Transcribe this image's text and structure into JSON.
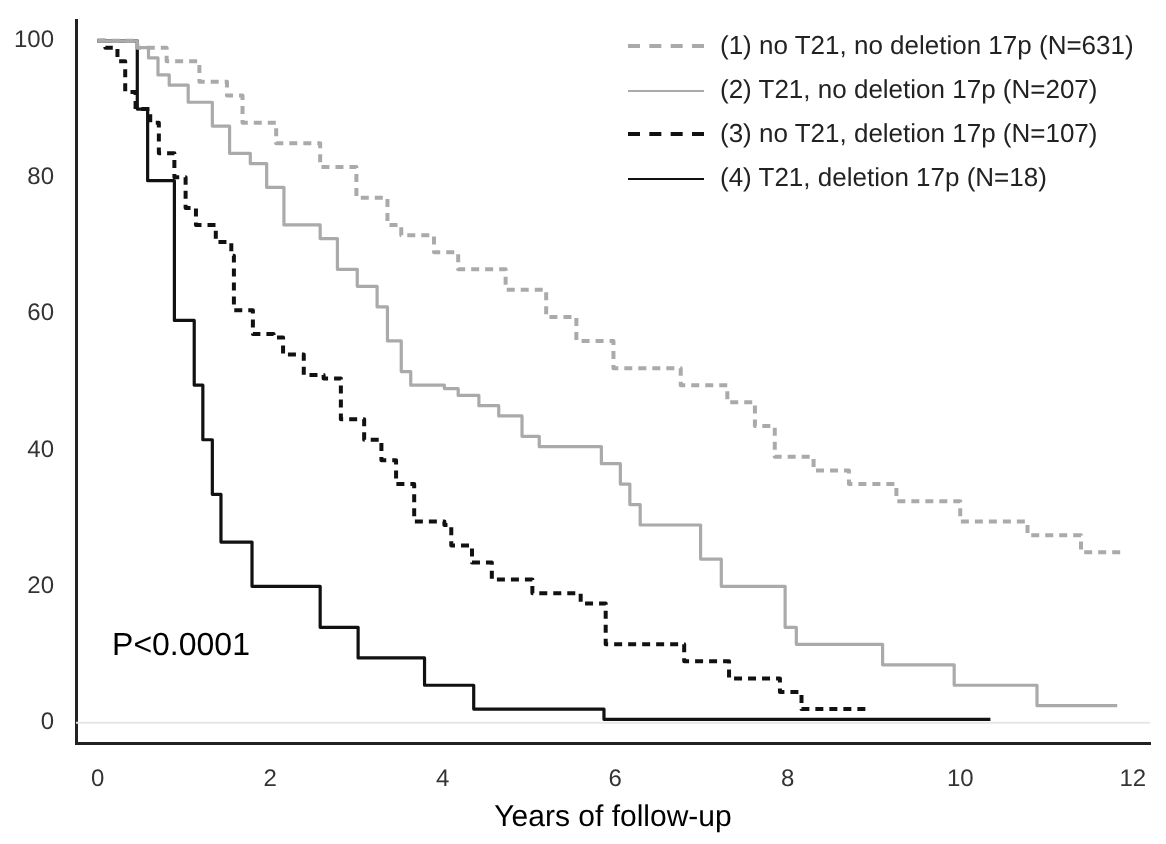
{
  "chart_data": {
    "type": "step",
    "xlabel": "Years of follow-up",
    "xlim": [
      -0.25,
      12.2
    ],
    "xticks": [
      0,
      2,
      4,
      6,
      8,
      10,
      12
    ],
    "ylim": [
      -3,
      103
    ],
    "yticks": [
      0,
      20,
      40,
      60,
      80,
      100
    ],
    "grid": false,
    "legend": "top right",
    "marker": "none",
    "ref_lines": [
      {
        "axis": "y",
        "value": 0,
        "color": "#e6e6e6"
      }
    ],
    "annotations": [
      "P<0.0001"
    ],
    "series": [
      {
        "name": "(1) no T21, no deletion 17p (N=631)",
        "color": "#aaaaaa",
        "line_style": "dashed",
        "x": [
          0,
          0.46,
          0.8,
          1.18,
          1.5,
          1.68,
          2.07,
          2.58,
          3.0,
          3.36,
          3.52,
          3.9,
          4.18,
          4.73,
          5.2,
          5.55,
          5.98,
          6.76,
          7.3,
          7.62,
          7.85,
          8.3,
          8.71,
          9.26,
          10.0,
          10.78,
          11.4,
          11.9
        ],
        "values": [
          100,
          99,
          97,
          94,
          92,
          88,
          85,
          81.5,
          77,
          73,
          71.5,
          69,
          66.5,
          63.5,
          59.5,
          56,
          52,
          49.5,
          47,
          43.5,
          39,
          37,
          35,
          32.5,
          29.5,
          27.5,
          25,
          25
        ]
      },
      {
        "name": "(2) T21, no deletion 17p (N=207)",
        "color": "#aaaaaa",
        "line_style": "solid",
        "x": [
          0,
          0.46,
          0.59,
          0.7,
          0.83,
          1.05,
          1.33,
          1.53,
          1.77,
          1.96,
          2.16,
          2.58,
          2.78,
          3.01,
          3.24,
          3.36,
          3.52,
          3.63,
          4.02,
          4.18,
          4.42,
          4.65,
          4.92,
          5.12,
          5.84,
          6.06,
          6.17,
          6.29,
          6.99,
          7.23,
          7.97,
          8.1,
          9.1,
          9.93,
          10.89,
          11.82
        ],
        "values": [
          100,
          99,
          97.5,
          95,
          93.5,
          91,
          87.5,
          83.5,
          82,
          78.5,
          73,
          71,
          66.5,
          64,
          61,
          56,
          51.5,
          49.5,
          49,
          48,
          46.5,
          45,
          42,
          40.5,
          38,
          35,
          32,
          29,
          24,
          20,
          14,
          11.5,
          8.5,
          5.5,
          2.5,
          2.5
        ]
      },
      {
        "name": "(3) no T21, deletion 17p (N=107)",
        "color": "#111111",
        "line_style": "dashed",
        "x": [
          0,
          0.09,
          0.23,
          0.32,
          0.44,
          0.61,
          0.71,
          0.89,
          1.02,
          1.14,
          1.37,
          1.55,
          1.58,
          1.8,
          2.04,
          2.15,
          2.39,
          2.62,
          2.82,
          3.09,
          3.29,
          3.46,
          3.67,
          4.02,
          4.1,
          4.34,
          4.57,
          5.04,
          5.6,
          5.89,
          6.8,
          7.32,
          7.91,
          8.16,
          8.94
        ],
        "values": [
          100,
          99,
          97,
          92.5,
          90,
          88,
          83.5,
          80,
          75.5,
          73,
          70.5,
          68.5,
          60.5,
          57,
          56.5,
          54,
          51,
          50.5,
          44.5,
          41.5,
          38.5,
          35,
          29.5,
          29,
          26,
          23.5,
          21,
          19,
          17.5,
          11.5,
          9,
          6.5,
          4.5,
          2,
          2
        ]
      },
      {
        "name": "(4) T21, deletion 17p (N=18)",
        "color": "#111111",
        "line_style": "solid",
        "x": [
          0,
          0.46,
          0.58,
          0.89,
          1.12,
          1.22,
          1.33,
          1.43,
          1.79,
          2.58,
          3.02,
          3.79,
          4.36,
          5.87,
          10.35
        ],
        "values": [
          100,
          90,
          79.5,
          59,
          49.5,
          41.5,
          33.5,
          26.5,
          20,
          14,
          9.5,
          5.5,
          2,
          0.5,
          0.5
        ]
      }
    ]
  }
}
